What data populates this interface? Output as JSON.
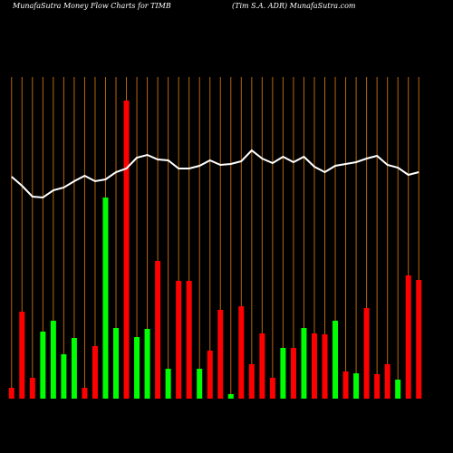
{
  "chart_data": {
    "type": "bar",
    "title": "MunafaSutra  Money Flow  Charts for TIMB",
    "subtitle": "(Tim S.A. ADR) MunafaSutra.com",
    "categories": [
      null,
      null,
      null,
      null,
      null,
      null,
      null,
      null,
      null,
      null,
      null,
      null,
      null,
      null,
      null,
      null,
      null,
      null,
      null,
      null,
      null,
      null,
      null,
      null,
      null,
      null,
      null,
      null,
      null,
      null,
      null,
      null,
      null,
      null,
      null,
      null,
      null,
      null,
      null,
      null
    ],
    "series": [
      {
        "values": [
          12,
          96,
          23,
          74,
          86,
          49,
          67,
          12,
          58,
          222,
          78,
          329,
          68,
          77,
          152,
          33,
          130,
          130,
          33,
          53,
          98,
          5,
          102,
          38,
          72,
          23,
          56,
          56,
          78,
          72,
          71,
          86,
          30,
          28,
          100,
          27,
          38,
          21,
          136,
          131
        ],
        "colors": [
          "#ff0000",
          "#ff0000",
          "#ff0000",
          "#00ff00",
          "#00ff00",
          "#00ff00",
          "#00ff00",
          "#ff0000",
          "#ff0000",
          "#00ff00",
          "#00ff00",
          "#ff0000",
          "#00ff00",
          "#00ff00",
          "#ff0000",
          "#00ff00",
          "#ff0000",
          "#ff0000",
          "#00ff00",
          "#ff0000",
          "#ff0000",
          "#00ff00",
          "#ff0000",
          "#ff0000",
          "#ff0000",
          "#ff0000",
          "#00ff00",
          "#ff0000",
          "#00ff00",
          "#ff0000",
          "#ff0000",
          "#00ff00",
          "#ff0000",
          "#00ff00",
          "#ff0000",
          "#ff0000",
          "#ff0000",
          "#00ff00",
          "#ff0000",
          "#ff0000"
        ]
      },
      {
        "type": "line",
        "color": "#ffffff",
        "values": [
          245,
          235,
          223,
          222,
          230,
          233,
          240,
          246,
          240,
          242,
          250,
          254,
          266,
          269,
          264,
          263,
          254,
          254,
          257,
          263,
          258,
          259,
          262,
          274,
          265,
          260,
          267,
          261,
          267,
          256,
          250,
          257,
          259,
          261,
          265,
          268,
          258,
          255,
          247,
          250
        ]
      }
    ],
    "ylim": [
      0,
      330
    ]
  }
}
